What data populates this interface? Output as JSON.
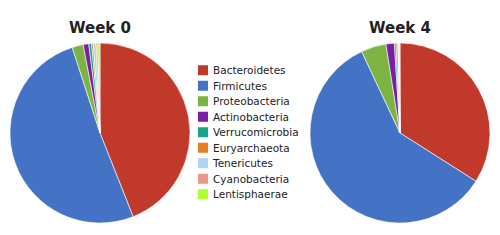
{
  "chart_data": {
    "type": "pie",
    "categories": [
      "Bacteroidetes",
      "Firmicutes",
      "Proteobacteria",
      "Actinobacteria",
      "Verrucomicrobia",
      "Euryarchaeota",
      "Tenericutes",
      "Cyanobacteria",
      "Lentisphaerae"
    ],
    "colors": [
      "#C1392B",
      "#4472C4",
      "#7CB342",
      "#7B1FA2",
      "#17A589",
      "#E67E22",
      "#AED6F1",
      "#F1948A",
      "#ADFF2F"
    ],
    "series": [
      {
        "name": "Week 0",
        "values": [
          44.0,
          51.0,
          2.0,
          1.0,
          0.5,
          0.3,
          0.5,
          0.3,
          0.4
        ]
      },
      {
        "name": "Week 4",
        "values": [
          34.0,
          59.0,
          4.5,
          1.5,
          0.3,
          0.3,
          0.2,
          0.1,
          0.1
        ]
      }
    ],
    "legend": "center"
  }
}
